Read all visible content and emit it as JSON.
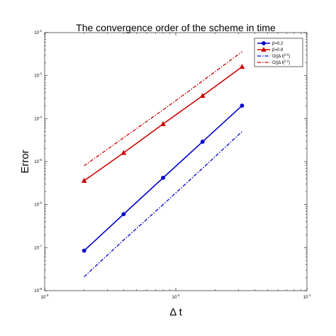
{
  "chart_data": {
    "type": "line",
    "title": "The convergence order of the scheme in time",
    "xlabel": "Δ t",
    "ylabel": "Error",
    "xscale": "log",
    "yscale": "log",
    "xlim": [
      0.001,
      0.1
    ],
    "ylim": [
      1e-08,
      0.01
    ],
    "grid": false,
    "legend_position": "top-right",
    "x_ticks": [
      {
        "value": 0.001,
        "base": "10",
        "exp": "-3"
      },
      {
        "value": 0.01,
        "base": "10",
        "exp": "-2"
      },
      {
        "value": 0.1,
        "base": "10",
        "exp": "-1"
      }
    ],
    "y_ticks": [
      {
        "value": 1e-08,
        "base": "10",
        "exp": "-8"
      },
      {
        "value": 1e-07,
        "base": "10",
        "exp": "-7"
      },
      {
        "value": 1e-06,
        "base": "10",
        "exp": "-6"
      },
      {
        "value": 1e-05,
        "base": "10",
        "exp": "-5"
      },
      {
        "value": 0.0001,
        "base": "10",
        "exp": "-4"
      },
      {
        "value": 0.001,
        "base": "10",
        "exp": "-3"
      },
      {
        "value": 0.01,
        "base": "10",
        "exp": "-2"
      }
    ],
    "x": [
      0.002,
      0.004,
      0.008,
      0.016,
      0.032
    ],
    "series": [
      {
        "name": "β=0.2",
        "name_parts": {
          "base": "β=0.2",
          "sup": ""
        },
        "values": [
          8.5e-08,
          6e-07,
          4.2e-06,
          2.9e-05,
          0.0002
        ],
        "color": "#0000CC",
        "style": "solid",
        "marker": "circle"
      },
      {
        "name": "β=0.8",
        "name_parts": {
          "base": "β=0.8",
          "sup": ""
        },
        "values": [
          3.6e-06,
          1.6e-05,
          7.5e-05,
          0.00034,
          0.0016
        ],
        "color": "#CC0000",
        "style": "solid",
        "marker": "triangle"
      },
      {
        "name": "O(|Δ t|^2.8)",
        "name_parts": {
          "base": "O(|Δ t|",
          "sup": "2.8",
          "tail": ")"
        },
        "values": [
          2.1e-08,
          1.5e-07,
          1e-06,
          7e-06,
          5e-05
        ],
        "color": "#0000CC",
        "style": "dashdot",
        "marker": "none"
      },
      {
        "name": "O(|Δ t|^2.2)",
        "name_parts": {
          "base": "O(|Δ t|",
          "sup": "2.2",
          "tail": ")"
        },
        "values": [
          8e-06,
          3.6e-05,
          0.00016,
          0.00075,
          0.0036
        ],
        "color": "#CC0000",
        "style": "dashdot",
        "marker": "none"
      }
    ]
  }
}
